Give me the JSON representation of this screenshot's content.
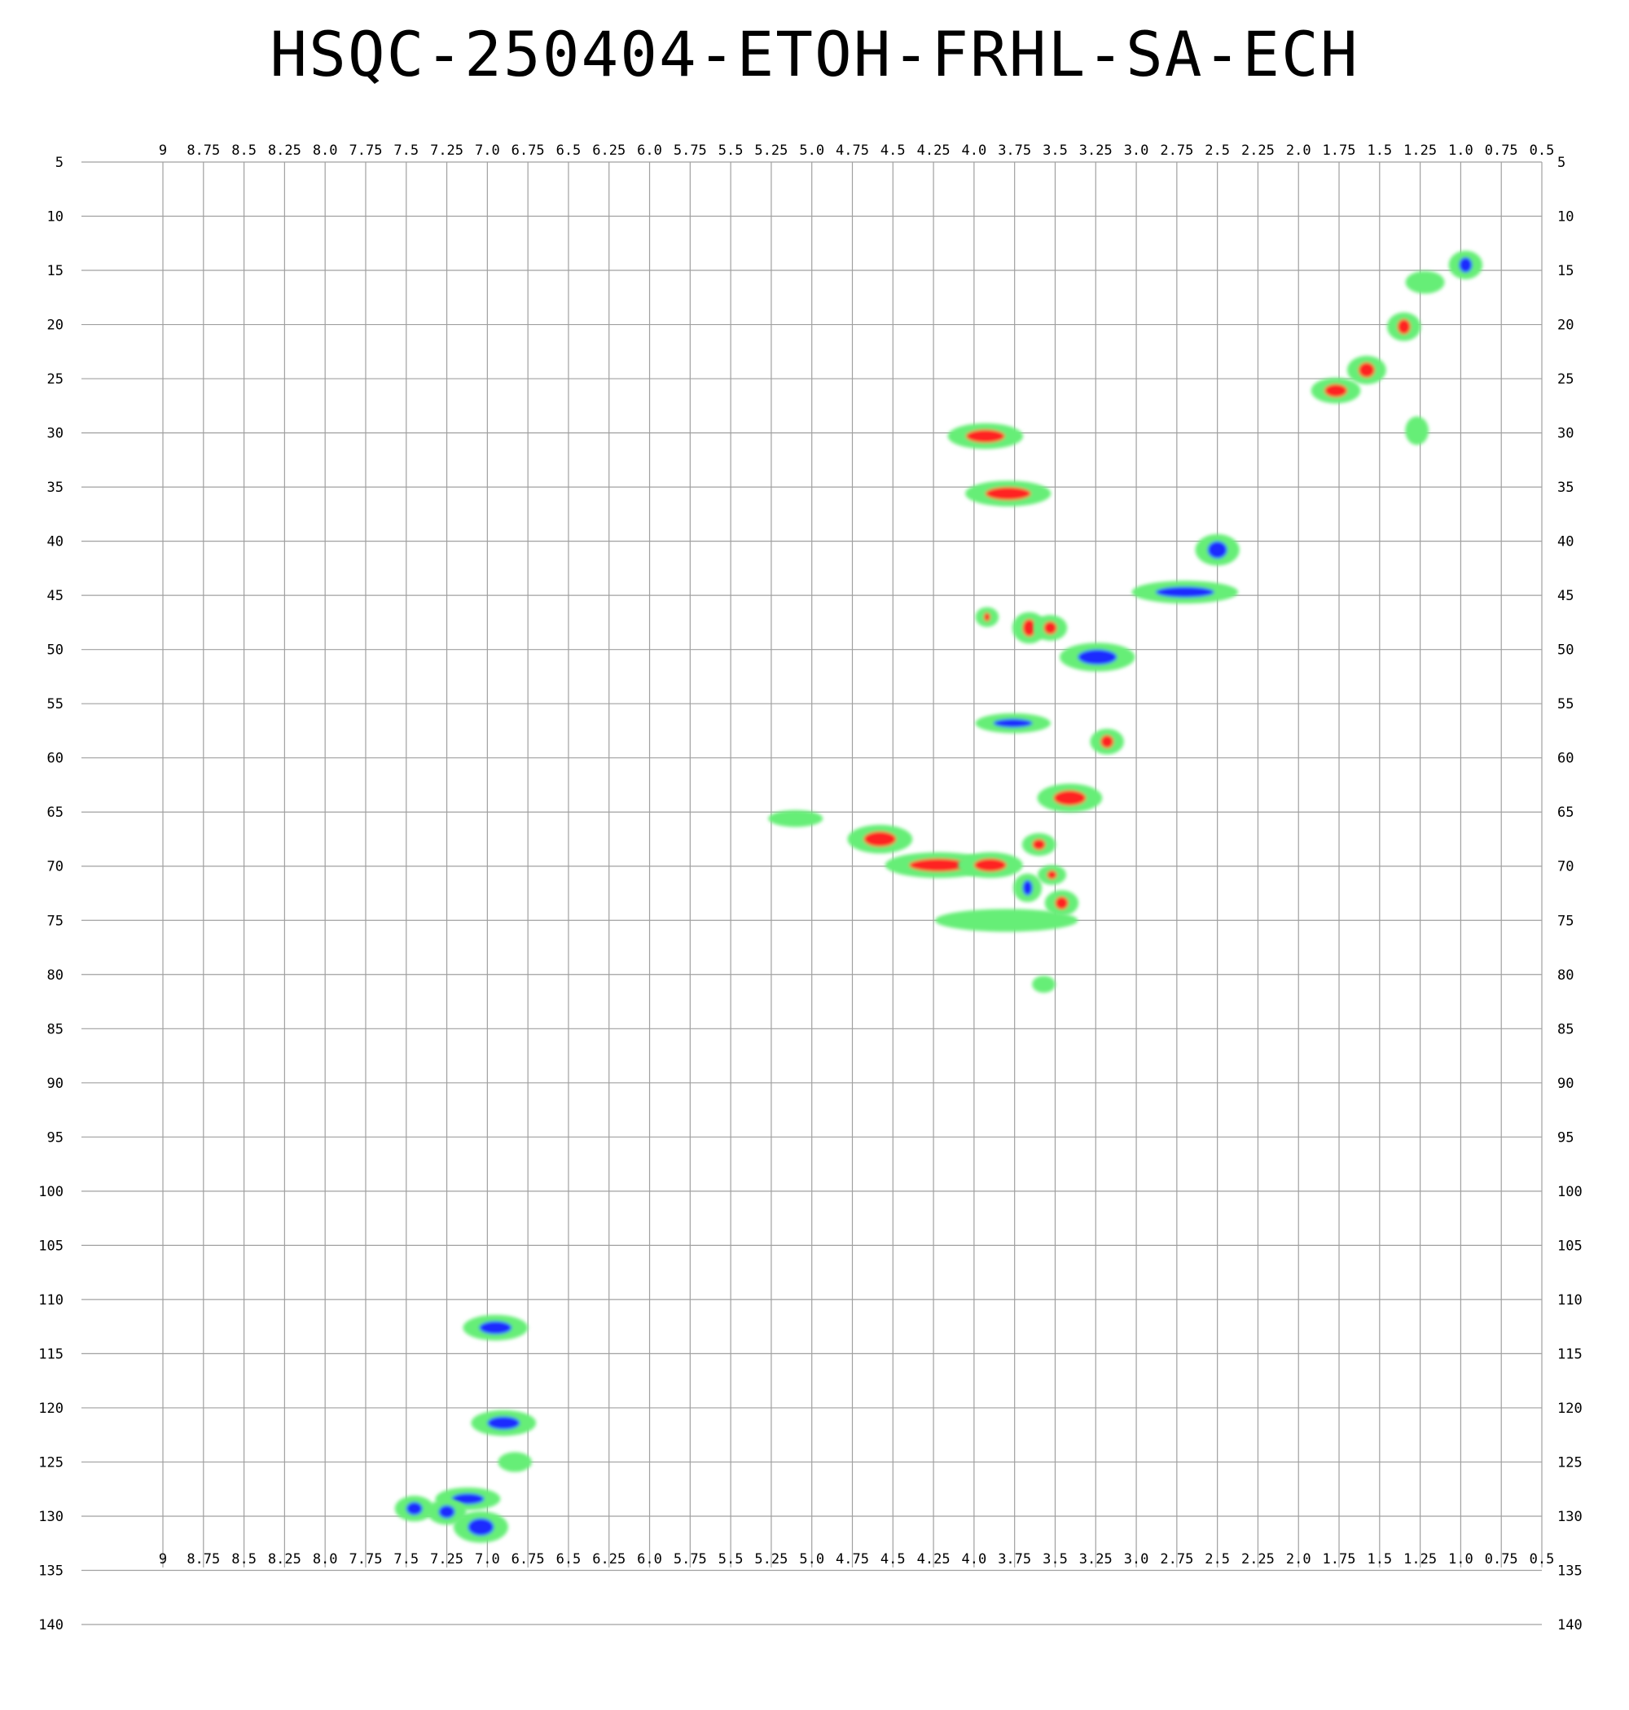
{
  "title": "HSQC-250404-ETOH-FRHL-SA-ECH",
  "colors": {
    "grid": "#a0a0a0",
    "contour_low": "#66ee77",
    "positive_peak": "#ff2020",
    "negative_peak": "#1a2bff"
  },
  "chart_data": {
    "type": "heatmap",
    "title": "HSQC-250404-ETOH-FRHL-SA-ECH",
    "x_axis": {
      "range": [
        9.0,
        0.5
      ],
      "ticks": [
        "9",
        "8.75",
        "8.5",
        "8.25",
        "8.0",
        "7.75",
        "7.5",
        "7.25",
        "7.0",
        "6.75",
        "6.5",
        "6.25",
        "6.0",
        "5.75",
        "5.5",
        "5.25",
        "5.0",
        "4.75",
        "4.5",
        "4.25",
        "4.0",
        "3.75",
        "3.5",
        "3.25",
        "3.0",
        "2.75",
        "2.5",
        "2.25",
        "2.0",
        "1.75",
        "1.5",
        "1.25",
        "1.0",
        "0.75",
        "0.5"
      ]
    },
    "y_axis": {
      "range": [
        5,
        140
      ],
      "ticks": [
        "5",
        "10",
        "15",
        "20",
        "25",
        "30",
        "35",
        "40",
        "45",
        "50",
        "55",
        "60",
        "65",
        "70",
        "75",
        "80",
        "85",
        "90",
        "95",
        "100",
        "105",
        "110",
        "115",
        "120",
        "125",
        "130",
        "135",
        "140"
      ]
    },
    "grid": true,
    "peaks": [
      {
        "x": 0.97,
        "y": 14.5,
        "dx": 0.04,
        "dy": 0.7,
        "sign": "negative"
      },
      {
        "x": 1.22,
        "y": 16.1,
        "dx": 0.05,
        "dy": 0.5,
        "sign": "weak"
      },
      {
        "x": 1.35,
        "y": 20.2,
        "dx": 0.04,
        "dy": 0.7,
        "sign": "positive"
      },
      {
        "x": 1.58,
        "y": 24.2,
        "dx": 0.05,
        "dy": 0.7,
        "sign": "positive"
      },
      {
        "x": 1.77,
        "y": 26.1,
        "dx": 0.07,
        "dy": 0.6,
        "sign": "positive"
      },
      {
        "x": 1.27,
        "y": 29.8,
        "dx": 0.02,
        "dy": 0.7,
        "sign": "weak"
      },
      {
        "x": 3.93,
        "y": 30.3,
        "dx": 0.12,
        "dy": 0.6,
        "sign": "positive"
      },
      {
        "x": 3.79,
        "y": 35.6,
        "dx": 0.14,
        "dy": 0.6,
        "sign": "positive"
      },
      {
        "x": 2.5,
        "y": 40.8,
        "dx": 0.06,
        "dy": 0.8,
        "sign": "negative"
      },
      {
        "x": 2.7,
        "y": 44.7,
        "dx": 0.18,
        "dy": 0.5,
        "sign": "negative"
      },
      {
        "x": 3.66,
        "y": 48.0,
        "dx": 0.04,
        "dy": 0.8,
        "sign": "positive"
      },
      {
        "x": 3.53,
        "y": 48.0,
        "dx": 0.04,
        "dy": 0.6,
        "sign": "positive"
      },
      {
        "x": 3.92,
        "y": 47.0,
        "dx": 0.02,
        "dy": 0.4,
        "sign": "positive"
      },
      {
        "x": 3.24,
        "y": 50.7,
        "dx": 0.12,
        "dy": 0.7,
        "sign": "negative"
      },
      {
        "x": 3.76,
        "y": 56.8,
        "dx": 0.12,
        "dy": 0.4,
        "sign": "negative"
      },
      {
        "x": 3.18,
        "y": 58.5,
        "dx": 0.04,
        "dy": 0.6,
        "sign": "positive"
      },
      {
        "x": 3.41,
        "y": 63.7,
        "dx": 0.1,
        "dy": 0.7,
        "sign": "positive"
      },
      {
        "x": 5.1,
        "y": 65.6,
        "dx": 0.08,
        "dy": 0.3,
        "sign": "weak"
      },
      {
        "x": 4.58,
        "y": 67.5,
        "dx": 0.1,
        "dy": 0.7,
        "sign": "positive"
      },
      {
        "x": 3.6,
        "y": 68.0,
        "dx": 0.04,
        "dy": 0.5,
        "sign": "positive"
      },
      {
        "x": 4.22,
        "y": 69.9,
        "dx": 0.18,
        "dy": 0.6,
        "sign": "positive"
      },
      {
        "x": 3.9,
        "y": 69.9,
        "dx": 0.1,
        "dy": 0.6,
        "sign": "positive"
      },
      {
        "x": 3.52,
        "y": 70.8,
        "dx": 0.03,
        "dy": 0.4,
        "sign": "positive"
      },
      {
        "x": 3.67,
        "y": 72.0,
        "dx": 0.03,
        "dy": 0.7,
        "sign": "negative"
      },
      {
        "x": 3.46,
        "y": 73.4,
        "dx": 0.04,
        "dy": 0.6,
        "sign": "positive"
      },
      {
        "x": 3.8,
        "y": 75.0,
        "dx": 0.25,
        "dy": 0.5,
        "sign": "weak"
      },
      {
        "x": 3.57,
        "y": 80.9,
        "dx": 0.02,
        "dy": 0.3,
        "sign": "weak"
      },
      {
        "x": 6.95,
        "y": 112.6,
        "dx": 0.1,
        "dy": 0.6,
        "sign": "negative"
      },
      {
        "x": 6.9,
        "y": 121.4,
        "dx": 0.1,
        "dy": 0.6,
        "sign": "negative"
      },
      {
        "x": 6.83,
        "y": 125.0,
        "dx": 0.04,
        "dy": 0.4,
        "sign": "weak"
      },
      {
        "x": 7.12,
        "y": 128.4,
        "dx": 0.1,
        "dy": 0.5,
        "sign": "negative"
      },
      {
        "x": 7.45,
        "y": 129.3,
        "dx": 0.05,
        "dy": 0.6,
        "sign": "negative"
      },
      {
        "x": 7.25,
        "y": 129.6,
        "dx": 0.05,
        "dy": 0.6,
        "sign": "negative"
      },
      {
        "x": 7.04,
        "y": 131.0,
        "dx": 0.08,
        "dy": 0.8,
        "sign": "negative"
      }
    ]
  }
}
